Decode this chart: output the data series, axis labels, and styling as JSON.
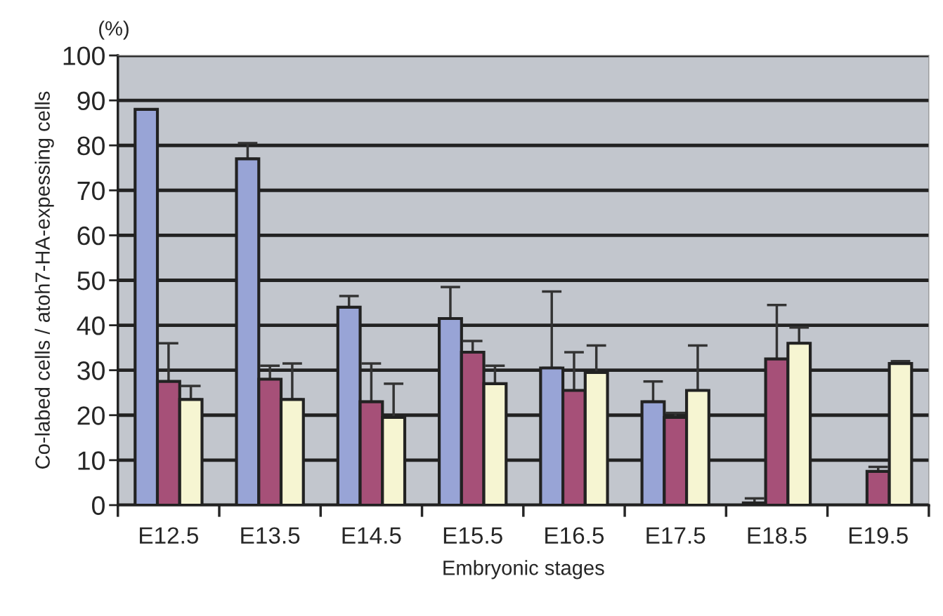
{
  "chart_data": {
    "type": "bar",
    "xlabel": "Embryonic stages",
    "ylabel": "Co-labed cells / atoh7-HA-expessing cells",
    "annotations": [
      "(%)"
    ],
    "categories": [
      "E12.5",
      "E13.5",
      "E14.5",
      "E15.5",
      "E16.5",
      "E17.5",
      "E18.5",
      "E19.5"
    ],
    "series": [
      {
        "color": "#98a4d6",
        "values": [
          88,
          77,
          44,
          41.5,
          30.5,
          23,
          0.5,
          null
        ],
        "errors": [
          null,
          [
            77,
            80.5
          ],
          [
            44,
            46.5
          ],
          [
            41.5,
            48.5
          ],
          [
            30.5,
            47.5
          ],
          [
            23,
            27.5
          ],
          [
            0.5,
            1.5
          ],
          null
        ]
      },
      {
        "color": "#a65078",
        "values": [
          27.5,
          28,
          23,
          34,
          25.5,
          19.5,
          32.5,
          7.5
        ],
        "errors": [
          [
            27.5,
            36
          ],
          [
            28,
            31
          ],
          [
            23,
            31.5
          ],
          [
            34,
            36.5
          ],
          [
            25.5,
            34
          ],
          [
            19.5,
            20.5
          ],
          [
            32.5,
            44.5
          ],
          [
            7.5,
            8.5
          ]
        ]
      },
      {
        "color": "#f6f5d2",
        "values": [
          23.5,
          23.5,
          19.5,
          27,
          29.5,
          25.5,
          36,
          31.5
        ],
        "errors": [
          [
            23.5,
            26.5
          ],
          [
            23.5,
            31.5
          ],
          [
            19.5,
            27
          ],
          [
            27,
            31
          ],
          [
            29.5,
            35.5
          ],
          [
            25.5,
            35.5
          ],
          [
            36,
            39.5
          ],
          [
            31.5,
            32
          ]
        ]
      }
    ],
    "ylim": [
      0,
      100
    ],
    "yticks": [
      0,
      10,
      20,
      30,
      40,
      50,
      60,
      70,
      80,
      90,
      100
    ],
    "grid": "y"
  }
}
